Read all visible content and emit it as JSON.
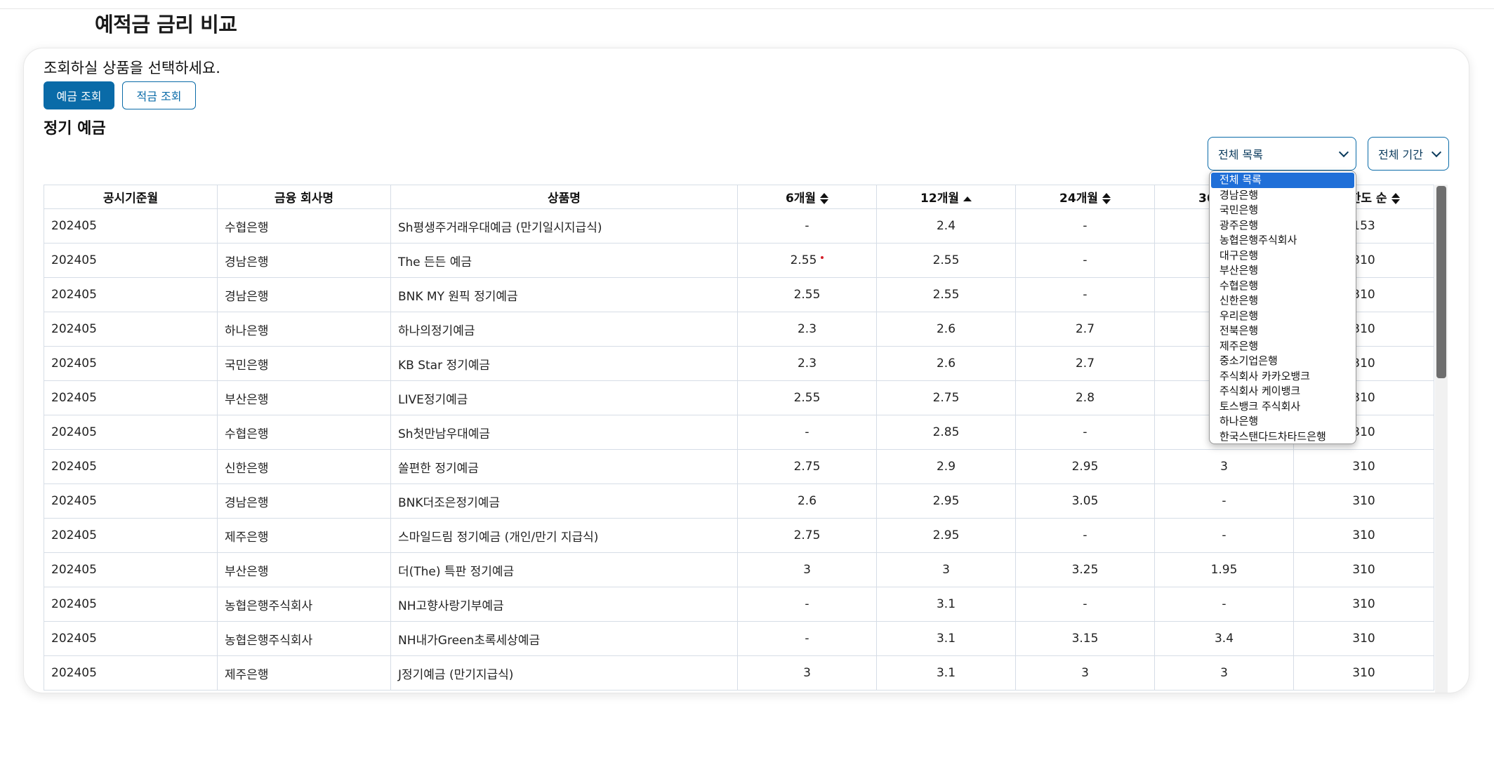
{
  "page": {
    "title": "예적금 금리 비교"
  },
  "card": {
    "instruction": "조회하실 상품을 선택하세요.",
    "buttons": {
      "deposit": "예금 조회",
      "savings": "적금 조회"
    },
    "section_title": "정기 예금",
    "filters": {
      "institution": {
        "selected": "전체 목록"
      },
      "period": {
        "selected": "전체 기간"
      }
    }
  },
  "table": {
    "columns": [
      "공시기준월",
      "금융 회사명",
      "상품명",
      "6개월",
      "12개월",
      "24개월",
      "36개월",
      "최고한도 순"
    ],
    "rows": [
      [
        "202405",
        "수협은행",
        "Sh평생주거래우대예금 (만기일시지급식)",
        "-",
        "2.4",
        "-",
        "",
        "153"
      ],
      [
        "202405",
        "경남은행",
        "The 든든 예금",
        "2.55",
        "2.55",
        "-",
        "",
        "310"
      ],
      [
        "202405",
        "경남은행",
        "BNK MY 원픽 정기예금",
        "2.55",
        "2.55",
        "-",
        "",
        "310"
      ],
      [
        "202405",
        "하나은행",
        "하나의정기예금",
        "2.3",
        "2.6",
        "2.7",
        "",
        "310"
      ],
      [
        "202405",
        "국민은행",
        "KB Star 정기예금",
        "2.3",
        "2.6",
        "2.7",
        "",
        "310"
      ],
      [
        "202405",
        "부산은행",
        "LIVE정기예금",
        "2.55",
        "2.75",
        "2.8",
        "",
        "310"
      ],
      [
        "202405",
        "수협은행",
        "Sh첫만남우대예금",
        "-",
        "2.85",
        "-",
        "",
        "310"
      ],
      [
        "202405",
        "신한은행",
        "쏠편한 정기예금",
        "2.75",
        "2.9",
        "2.95",
        "3",
        "310"
      ],
      [
        "202405",
        "경남은행",
        "BNK더조은정기예금",
        "2.6",
        "2.95",
        "3.05",
        "-",
        "310"
      ],
      [
        "202405",
        "제주은행",
        "스마일드림 정기예금 (개인/만기 지급식)",
        "2.75",
        "2.95",
        "-",
        "-",
        "310"
      ],
      [
        "202405",
        "부산은행",
        "더(The) 특판 정기예금",
        "3",
        "3",
        "3.25",
        "1.95",
        "310"
      ],
      [
        "202405",
        "농협은행주식회사",
        "NH고향사랑기부예금",
        "-",
        "3.1",
        "-",
        "-",
        "310"
      ],
      [
        "202405",
        "농협은행주식회사",
        "NH내가Green초록세상예금",
        "-",
        "3.1",
        "3.15",
        "3.4",
        "310"
      ],
      [
        "202405",
        "제주은행",
        "J정기예금 (만기지급식)",
        "3",
        "3.1",
        "3",
        "3",
        "310"
      ]
    ]
  },
  "dropdown": {
    "options": [
      "전체 목록",
      "경남은행",
      "국민은행",
      "광주은행",
      "농협은행주식회사",
      "대구은행",
      "부산은행",
      "수협은행",
      "신한은행",
      "우리은행",
      "전북은행",
      "제주은행",
      "중소기업은행",
      "주식회사 카카오뱅크",
      "주식회사 케이뱅크",
      "토스뱅크 주식회사",
      "하나은행",
      "한국스탠다드차타드은행"
    ],
    "selected_index": 0
  }
}
